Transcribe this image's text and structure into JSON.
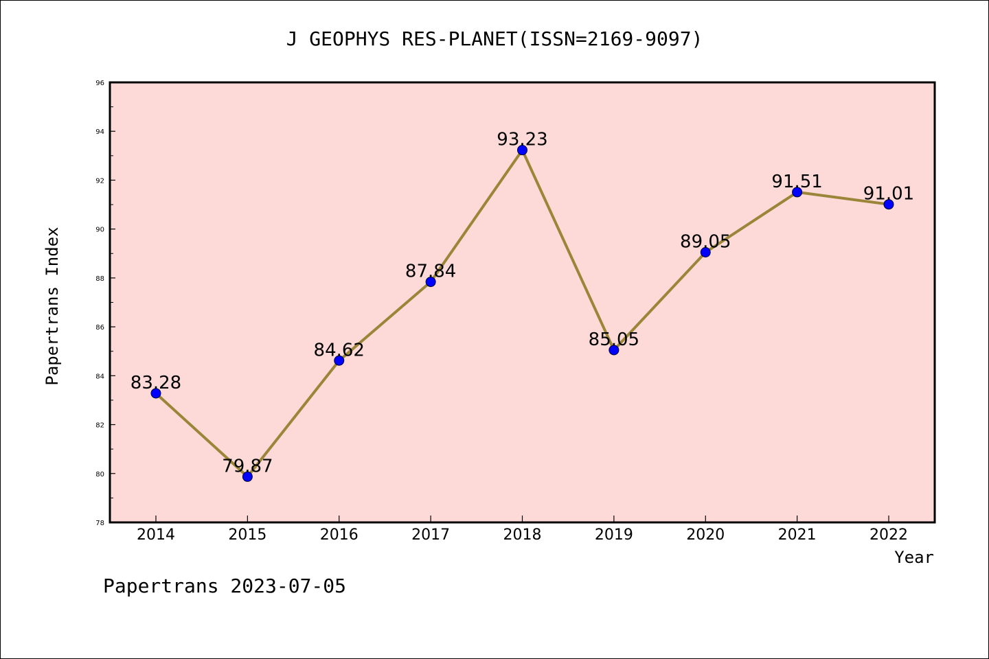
{
  "chart_data": {
    "type": "line",
    "title": "J GEOPHYS RES-PLANET(ISSN=2169-9097)",
    "xlabel": "Year",
    "ylabel": "Papertrans Index",
    "categories": [
      "2014",
      "2015",
      "2016",
      "2017",
      "2018",
      "2019",
      "2020",
      "2021",
      "2022"
    ],
    "series": [
      {
        "values": [
          83.28,
          79.87,
          84.62,
          87.84,
          93.23,
          85.05,
          89.05,
          91.51,
          91.01
        ],
        "labels": [
          "83.28",
          "79.87",
          "84.62",
          "87.84",
          "93.23",
          "85.05",
          "89.05",
          "91.51",
          "91.01"
        ],
        "line_color": "#9a8538",
        "marker_color": "#0000ff"
      }
    ],
    "ylim": [
      78,
      96
    ],
    "yticks": [
      "78",
      "80",
      "82",
      "84",
      "86",
      "88",
      "90",
      "92",
      "94",
      "96"
    ],
    "grid": false,
    "plot_background": "#fddad7"
  },
  "footer": {
    "text": "Papertrans 2023-07-05"
  }
}
